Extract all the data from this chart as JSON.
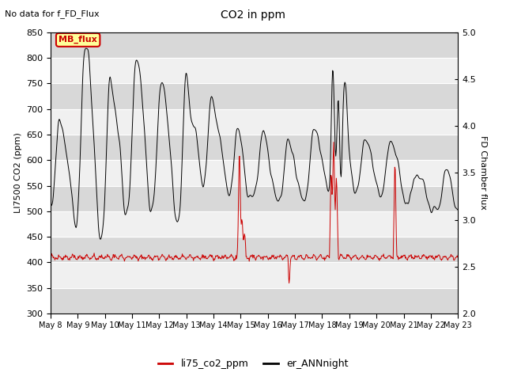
{
  "title": "CO2 in ppm",
  "subtitle": "No data for f_FD_Flux",
  "ylabel_left": "LI7500 CO2 (ppm)",
  "ylabel_right": "FD Chamber flux",
  "ylim_left": [
    300,
    850
  ],
  "ylim_right": [
    2.0,
    5.0
  ],
  "yticks_left": [
    300,
    350,
    400,
    450,
    500,
    550,
    600,
    650,
    700,
    750,
    800,
    850
  ],
  "yticks_right": [
    2.0,
    2.5,
    3.0,
    3.5,
    4.0,
    4.5,
    5.0
  ],
  "xticklabels": [
    "May 8",
    "May 9",
    "May 10",
    "May 11",
    "May 12",
    "May 13",
    "May 14",
    "May 15",
    "May 16",
    "May 17",
    "May 18",
    "May 19",
    "May 20",
    "May 21",
    "May 22",
    "May 23"
  ],
  "legend_labels": [
    "li75_co2_ppm",
    "er_ANNnight"
  ],
  "legend_colors": [
    "#cc0000",
    "#000000"
  ],
  "mb_flux_color": "#cc0000",
  "mb_flux_bg": "#ffff99",
  "plot_bg_light": "#f0f0f0",
  "plot_bg_dark": "#d8d8d8",
  "line_color_red": "#cc0000",
  "line_color_black": "#000000",
  "figsize": [
    6.4,
    4.8
  ],
  "dpi": 100
}
